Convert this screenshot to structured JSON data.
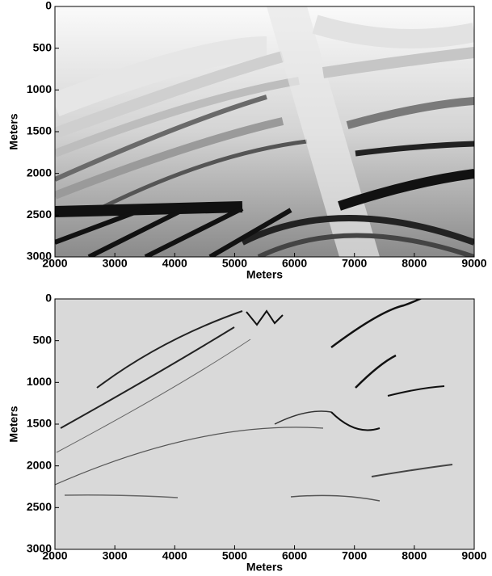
{
  "chart_data": [
    {
      "type": "image",
      "xlabel": "Meters",
      "ylabel": "Meters",
      "xlim": [
        2000,
        9000
      ],
      "ylim": [
        0,
        3000
      ],
      "y_inverted": true,
      "xticks": [
        2000,
        3000,
        4000,
        5000,
        6000,
        7000,
        8000,
        9000
      ],
      "yticks": [
        0,
        500,
        1000,
        1500,
        2000,
        2500,
        3000
      ]
    },
    {
      "type": "image",
      "xlabel": "Meters",
      "ylabel": "Meters",
      "xlim": [
        2000,
        9000
      ],
      "ylim": [
        0,
        3000
      ],
      "y_inverted": true,
      "xticks": [
        2000,
        3000,
        4000,
        5000,
        6000,
        7000,
        8000,
        9000
      ],
      "yticks": [
        0,
        500,
        1000,
        1500,
        2000,
        2500,
        3000
      ]
    }
  ]
}
